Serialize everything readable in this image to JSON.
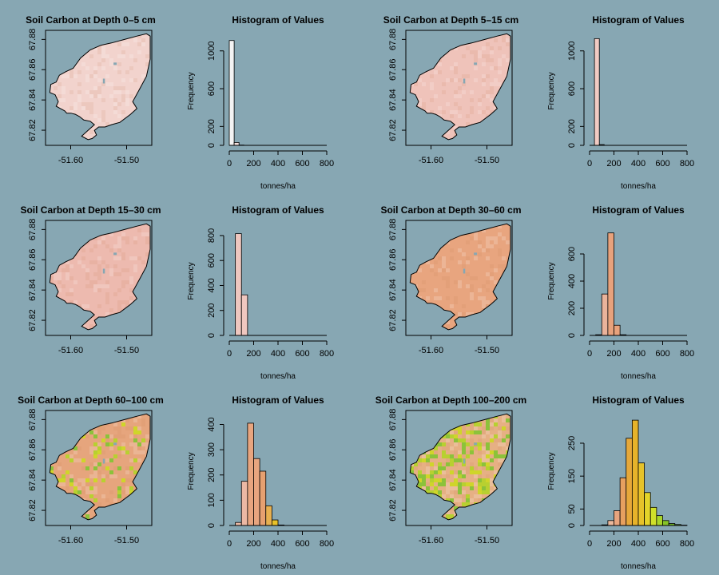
{
  "background": "#87a7b3",
  "map_axes": {
    "x_ticks": [
      {
        "value": -51.6,
        "label": "-51.60"
      },
      {
        "value": -51.5,
        "label": "-51.50"
      }
    ],
    "y_ticks": [
      {
        "value": 67.82,
        "label": "67.82"
      },
      {
        "value": 67.84,
        "label": "67.84"
      },
      {
        "value": 67.86,
        "label": "67.86"
      },
      {
        "value": 67.88,
        "label": "67.88"
      }
    ],
    "xlim": [
      -51.645,
      -51.455
    ],
    "ylim": [
      67.81,
      67.886
    ]
  },
  "chart_data": [
    {
      "type": "heatmap",
      "title": "Soil Carbon at Depth 0–5 cm",
      "fill": "#f2d3cd",
      "greens": false
    },
    {
      "type": "bar",
      "title": "Histogram of Values",
      "xlabel": "tonnes/ha",
      "ylabel": "Frequency",
      "xlim": [
        0,
        800
      ],
      "x_ticks": [
        0,
        200,
        400,
        600,
        800
      ],
      "ylim": [
        0,
        1150
      ],
      "y_ticks": [
        0,
        200,
        600,
        1000
      ],
      "bin_width": 40,
      "bins": [
        {
          "x0": 0,
          "count": 1110,
          "color": "#f4f4f4"
        },
        {
          "x0": 40,
          "count": 30,
          "color": "#f6e2de"
        },
        {
          "x0": 80,
          "count": 3,
          "color": "#f6e2de"
        }
      ]
    },
    {
      "type": "heatmap",
      "title": "Soil Carbon at Depth 5–15 cm",
      "fill": "#efc3ba",
      "greens": false
    },
    {
      "type": "bar",
      "title": "Histogram of Values",
      "xlabel": "tonnes/ha",
      "ylabel": "Frequency",
      "xlim": [
        0,
        800
      ],
      "x_ticks": [
        0,
        200,
        400,
        600,
        800
      ],
      "ylim": [
        0,
        1150
      ],
      "y_ticks": [
        0,
        200,
        600,
        1000
      ],
      "bin_width": 40,
      "bins": [
        {
          "x0": 40,
          "count": 1130,
          "color": "#f1cbc4"
        },
        {
          "x0": 80,
          "count": 8,
          "color": "#f1cbc4"
        }
      ]
    },
    {
      "type": "heatmap",
      "title": "Soil Carbon at Depth 15–30 cm",
      "fill": "#edbaaf",
      "greens": false
    },
    {
      "type": "bar",
      "title": "Histogram of Values",
      "xlabel": "tonnes/ha",
      "ylabel": "Frequency",
      "xlim": [
        0,
        800
      ],
      "x_ticks": [
        0,
        200,
        400,
        600,
        800
      ],
      "ylim": [
        0,
        870
      ],
      "y_ticks": [
        0,
        200,
        400,
        600,
        800
      ],
      "bin_width": 50,
      "bins": [
        {
          "x0": 50,
          "count": 815,
          "color": "#f0c7bf"
        },
        {
          "x0": 100,
          "count": 325,
          "color": "#f0c7bf"
        }
      ]
    },
    {
      "type": "heatmap",
      "title": "Soil Carbon at Depth 30–60 cm",
      "fill": "#e8a57f",
      "greens": false
    },
    {
      "type": "bar",
      "title": "Histogram of Values",
      "xlabel": "tonnes/ha",
      "ylabel": "Frequency",
      "xlim": [
        0,
        800
      ],
      "x_ticks": [
        0,
        200,
        400,
        600,
        800
      ],
      "ylim": [
        0,
        800
      ],
      "y_ticks": [
        0,
        200,
        400,
        600
      ],
      "bin_width": 50,
      "bins": [
        {
          "x0": 50,
          "count": 5,
          "color": "#eab39b"
        },
        {
          "x0": 100,
          "count": 305,
          "color": "#eab39b"
        },
        {
          "x0": 150,
          "count": 755,
          "color": "#e8a27c"
        },
        {
          "x0": 200,
          "count": 75,
          "color": "#e8a27c"
        },
        {
          "x0": 250,
          "count": 5,
          "color": "#e8a27c"
        }
      ]
    },
    {
      "type": "heatmap",
      "title": "Soil Carbon at Depth 60–100 cm",
      "fill": "#e6a57d",
      "greens": true,
      "green_level": 0.25
    },
    {
      "type": "bar",
      "title": "Histogram of Values",
      "xlabel": "tonnes/ha",
      "ylabel": "Frequency",
      "xlim": [
        0,
        800
      ],
      "x_ticks": [
        0,
        200,
        400,
        600,
        800
      ],
      "ylim": [
        0,
        430
      ],
      "y_ticks": [
        0,
        100,
        200,
        300,
        400
      ],
      "bin_width": 50,
      "bins": [
        {
          "x0": 50,
          "count": 12,
          "color": "#ebb8a4"
        },
        {
          "x0": 100,
          "count": 175,
          "color": "#ebb8a4"
        },
        {
          "x0": 150,
          "count": 405,
          "color": "#e8a57f"
        },
        {
          "x0": 200,
          "count": 265,
          "color": "#e8a57f"
        },
        {
          "x0": 250,
          "count": 215,
          "color": "#e6a070"
        },
        {
          "x0": 300,
          "count": 78,
          "color": "#e7b050"
        },
        {
          "x0": 350,
          "count": 22,
          "color": "#e8c22a"
        },
        {
          "x0": 400,
          "count": 2,
          "color": "#e8c22a"
        }
      ]
    },
    {
      "type": "heatmap",
      "title": "Soil Carbon at Depth 100–200 cm",
      "fill": "#e6b084",
      "greens": true,
      "green_level": 0.7
    },
    {
      "type": "bar",
      "title": "Histogram of Values",
      "xlabel": "tonnes/ha",
      "ylabel": "Frequency",
      "xlim": [
        0,
        800
      ],
      "x_ticks": [
        0,
        200,
        400,
        600,
        800
      ],
      "ylim": [
        0,
        330
      ],
      "y_ticks": [
        0,
        50,
        150,
        250
      ],
      "bin_width": 50,
      "bins": [
        {
          "x0": 100,
          "count": 2,
          "color": "#eab89c"
        },
        {
          "x0": 150,
          "count": 15,
          "color": "#eab89c"
        },
        {
          "x0": 200,
          "count": 45,
          "color": "#e8a57f"
        },
        {
          "x0": 250,
          "count": 145,
          "color": "#e6a060"
        },
        {
          "x0": 300,
          "count": 265,
          "color": "#e6a83a"
        },
        {
          "x0": 350,
          "count": 320,
          "color": "#e6b32a"
        },
        {
          "x0": 400,
          "count": 190,
          "color": "#e6c22a"
        },
        {
          "x0": 450,
          "count": 100,
          "color": "#e3d42a"
        },
        {
          "x0": 500,
          "count": 55,
          "color": "#cfe02a"
        },
        {
          "x0": 550,
          "count": 30,
          "color": "#a8d52a"
        },
        {
          "x0": 600,
          "count": 15,
          "color": "#86c427"
        },
        {
          "x0": 650,
          "count": 6,
          "color": "#6fb424"
        },
        {
          "x0": 700,
          "count": 3,
          "color": "#5ea722"
        },
        {
          "x0": 750,
          "count": 1,
          "color": "#4f9a20"
        }
      ]
    }
  ]
}
